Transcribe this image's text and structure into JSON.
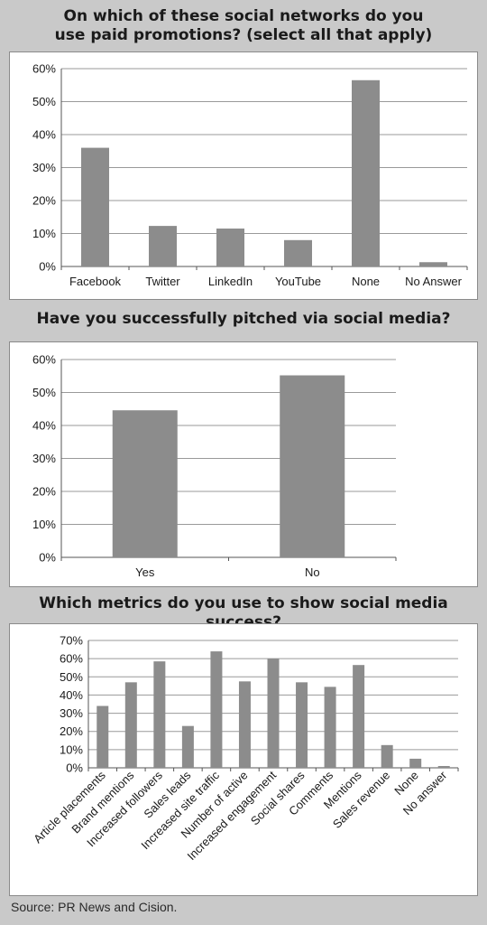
{
  "colors": {
    "bar": "#8c8c8c",
    "grid": "#9a9a9a",
    "background": "#c9c9c9",
    "panel": "#ffffff"
  },
  "chart_data": [
    {
      "type": "bar",
      "title": "On which of these social networks do you use paid promotions? (select all that apply)",
      "title_lines": [
        "On which of these social networks do you",
        "use paid promotions? (select all that apply)"
      ],
      "categories": [
        "Facebook",
        "Twitter",
        "LinkedIn",
        "YouTube",
        "None",
        "No Answer"
      ],
      "values": [
        36,
        12.3,
        11.5,
        8,
        56.5,
        1.3
      ],
      "yticks": [
        "0%",
        "10%",
        "20%",
        "30%",
        "40%",
        "50%",
        "60%"
      ],
      "ylim": [
        0,
        60
      ],
      "grid": true
    },
    {
      "type": "bar",
      "title": "Have you successfully pitched via social media?",
      "title_lines": [
        "Have you successfully pitched via social media?"
      ],
      "categories": [
        "Yes",
        "No"
      ],
      "values": [
        44.6,
        55.2
      ],
      "yticks": [
        "0%",
        "10%",
        "20%",
        "30%",
        "40%",
        "50%",
        "60%"
      ],
      "ylim": [
        0,
        60
      ],
      "grid": true
    },
    {
      "type": "bar",
      "title": "Which metrics do you use to show social media success?",
      "title_lines": [
        "Which metrics do you use to show social media success?"
      ],
      "categories": [
        "Article placements",
        "Brand mentions",
        "Increased followers",
        "Sales leads",
        "Increased site traffic",
        "Number of active",
        "Increased engagement",
        "Social shares",
        "Comments",
        "Mentions",
        "Sales revenue",
        "None",
        "No answer"
      ],
      "values": [
        34,
        47,
        58.5,
        23,
        64,
        47.5,
        60,
        47,
        44.5,
        56.5,
        12.5,
        5,
        1
      ],
      "yticks": [
        "0%",
        "10%",
        "20%",
        "30%",
        "40%",
        "50%",
        "60%",
        "70%"
      ],
      "ylim": [
        0,
        70
      ],
      "grid": true
    }
  ],
  "source": "Source: PR News and Cision."
}
